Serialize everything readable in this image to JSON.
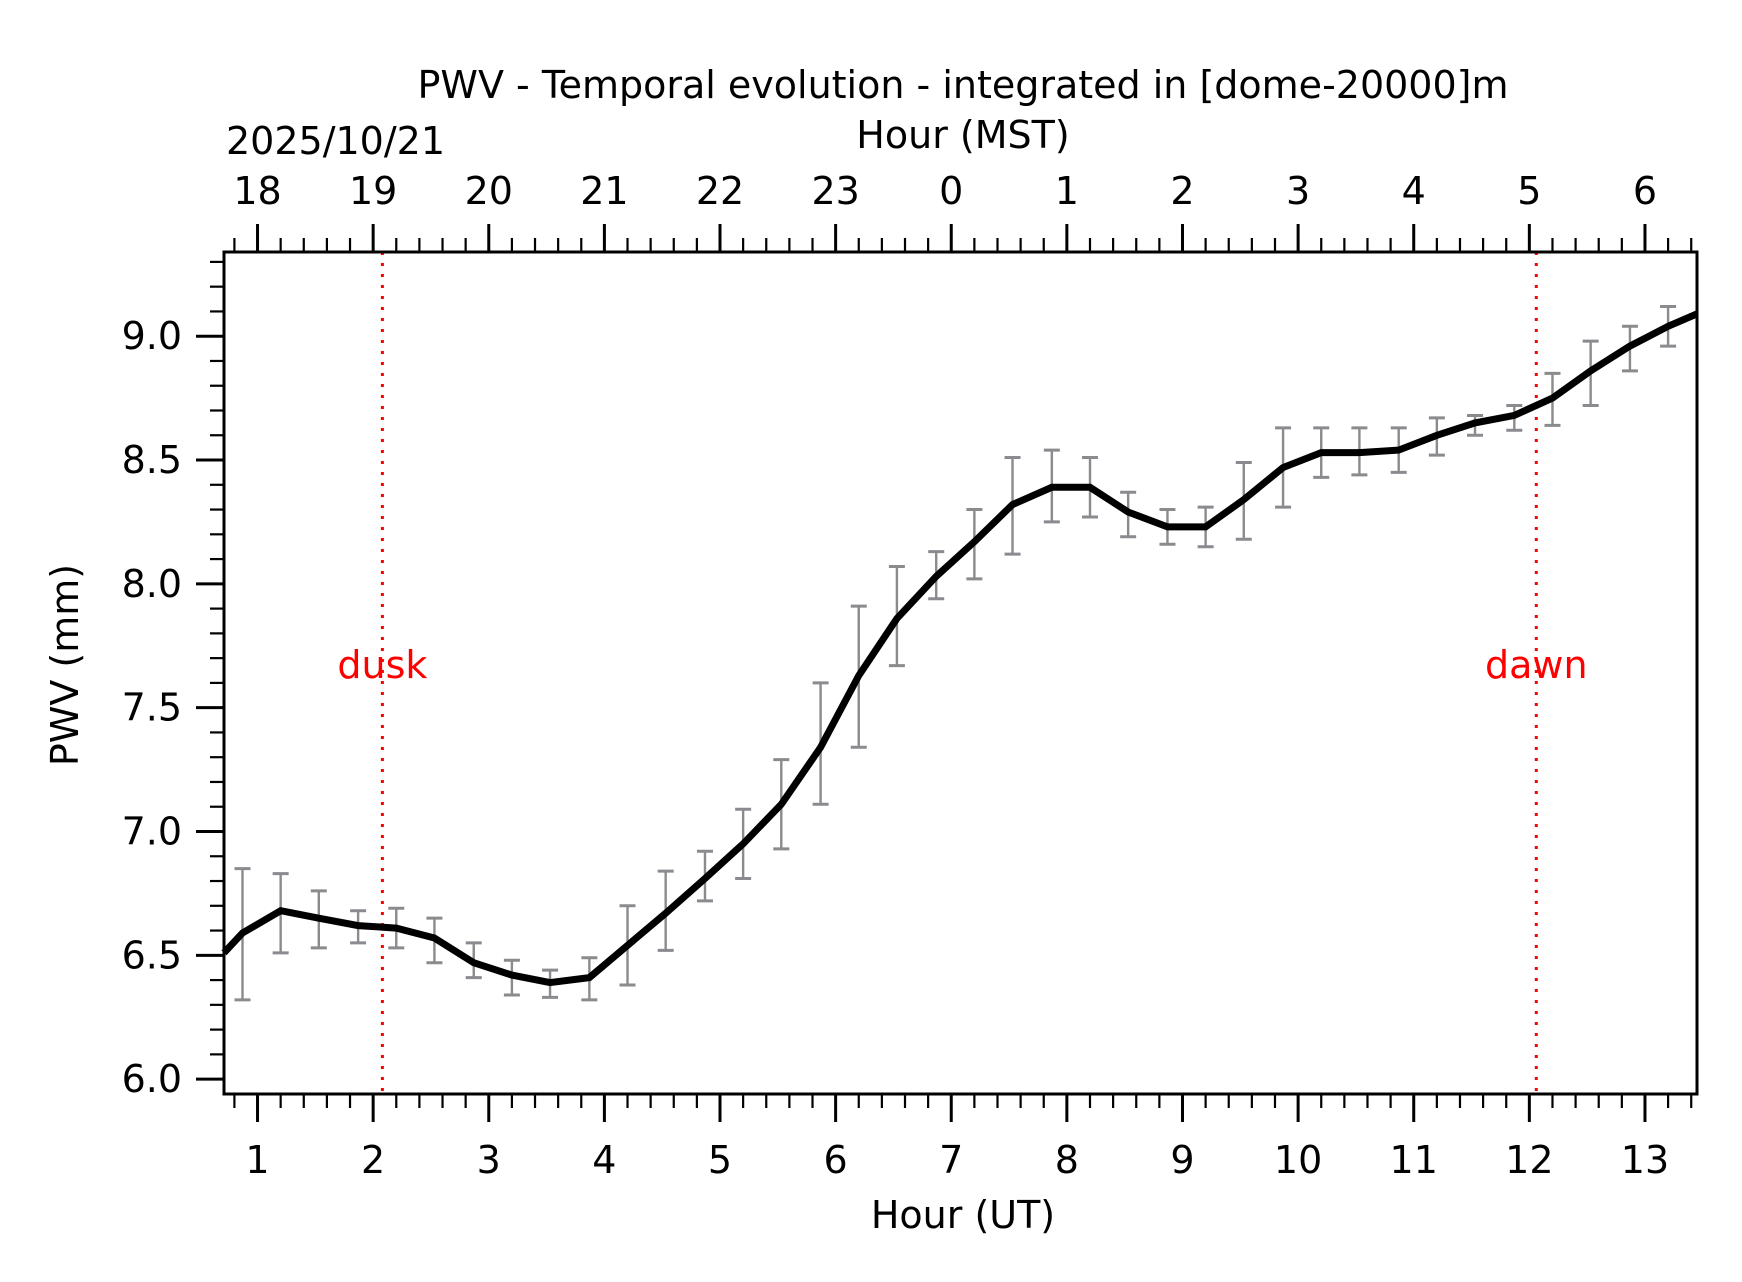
{
  "chart_data": {
    "type": "line",
    "title": "PWV - Temporal evolution - integrated in [dome-20000]m",
    "xlabel": "Hour (UT)",
    "ylabel": "PWV (mm)",
    "top_axis": {
      "label": "Hour (MST)",
      "date_label": "2025/10/21",
      "utc_offset_hours": -7,
      "tick_labels": [
        "18",
        "19",
        "20",
        "21",
        "22",
        "23",
        "0",
        "1",
        "2",
        "3",
        "4",
        "5",
        "6"
      ]
    },
    "xlim": [
      0.71,
      13.45
    ],
    "ylim": [
      5.94,
      9.34
    ],
    "x_ticks": [
      1,
      2,
      3,
      4,
      5,
      6,
      7,
      8,
      9,
      10,
      11,
      12,
      13
    ],
    "x_tick_labels": [
      "1",
      "2",
      "3",
      "4",
      "5",
      "6",
      "7",
      "8",
      "9",
      "10",
      "11",
      "12",
      "13"
    ],
    "x_minor_step": 0.2,
    "y_ticks": [
      6.0,
      6.5,
      7.0,
      7.5,
      8.0,
      8.5,
      9.0
    ],
    "y_tick_labels": [
      "6.0",
      "6.5",
      "7.0",
      "7.5",
      "8.0",
      "8.5",
      "9.0"
    ],
    "y_minor_step": 0.1,
    "grid": false,
    "series": [
      {
        "name": "PWV",
        "color": "#000000",
        "errorbar_color": "#8a8a8f",
        "line_start": {
          "x": 0.71,
          "y": 6.51
        },
        "line_end": {
          "x": 13.45,
          "y": 9.09
        },
        "x": [
          0.87,
          1.2,
          1.53,
          1.87,
          2.2,
          2.53,
          2.87,
          3.2,
          3.53,
          3.87,
          4.2,
          4.53,
          4.87,
          5.2,
          5.53,
          5.87,
          6.2,
          6.53,
          6.87,
          7.2,
          7.53,
          7.87,
          8.2,
          8.53,
          8.87,
          9.2,
          9.53,
          9.87,
          10.2,
          10.53,
          10.87,
          11.2,
          11.53,
          11.87,
          12.2,
          12.53,
          12.87,
          13.2
        ],
        "y": [
          6.59,
          6.68,
          6.65,
          6.62,
          6.61,
          6.57,
          6.47,
          6.42,
          6.39,
          6.41,
          6.54,
          6.67,
          6.81,
          6.95,
          7.11,
          7.34,
          7.63,
          7.86,
          8.03,
          8.17,
          8.32,
          8.39,
          8.39,
          8.29,
          8.23,
          8.23,
          8.34,
          8.47,
          8.53,
          8.53,
          8.54,
          8.6,
          8.65,
          8.68,
          8.75,
          8.86,
          8.96,
          9.04
        ],
        "err_low": [
          6.32,
          6.51,
          6.53,
          6.55,
          6.53,
          6.47,
          6.41,
          6.34,
          6.33,
          6.32,
          6.38,
          6.52,
          6.72,
          6.81,
          6.93,
          7.11,
          7.34,
          7.67,
          7.94,
          8.02,
          8.12,
          8.25,
          8.27,
          8.19,
          8.16,
          8.15,
          8.18,
          8.31,
          8.43,
          8.44,
          8.45,
          8.52,
          8.6,
          8.62,
          8.64,
          8.72,
          8.86,
          8.96
        ],
        "err_high": [
          6.85,
          6.83,
          6.76,
          6.68,
          6.69,
          6.65,
          6.55,
          6.48,
          6.44,
          6.49,
          6.7,
          6.84,
          6.92,
          7.09,
          7.29,
          7.6,
          7.91,
          8.07,
          8.13,
          8.3,
          8.51,
          8.54,
          8.51,
          8.37,
          8.3,
          8.31,
          8.49,
          8.63,
          8.63,
          8.63,
          8.63,
          8.67,
          8.68,
          8.72,
          8.85,
          8.98,
          9.04,
          9.12
        ]
      }
    ],
    "annotations": [
      {
        "label": "dusk",
        "x": 2.08,
        "color": "#ff0000",
        "style": "dotted vertical line"
      },
      {
        "label": "dawn",
        "x": 12.06,
        "color": "#ff0000",
        "style": "dotted vertical line"
      }
    ]
  }
}
